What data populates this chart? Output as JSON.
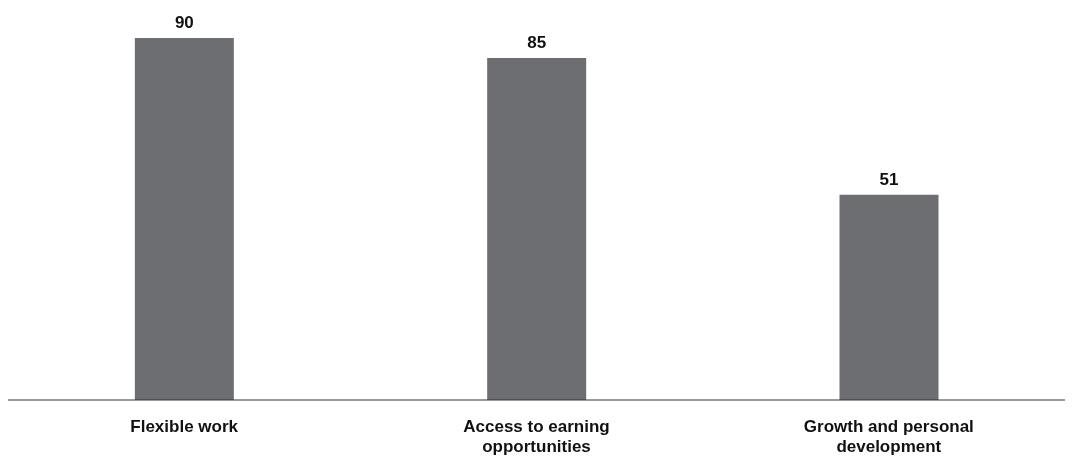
{
  "chart_data": {
    "type": "bar",
    "categories": [
      "Flexible work",
      "Access to earning opportunities",
      "Growth and personal development"
    ],
    "values": [
      90,
      85,
      51
    ],
    "color": "#6d6e71",
    "data_labels": true
  }
}
